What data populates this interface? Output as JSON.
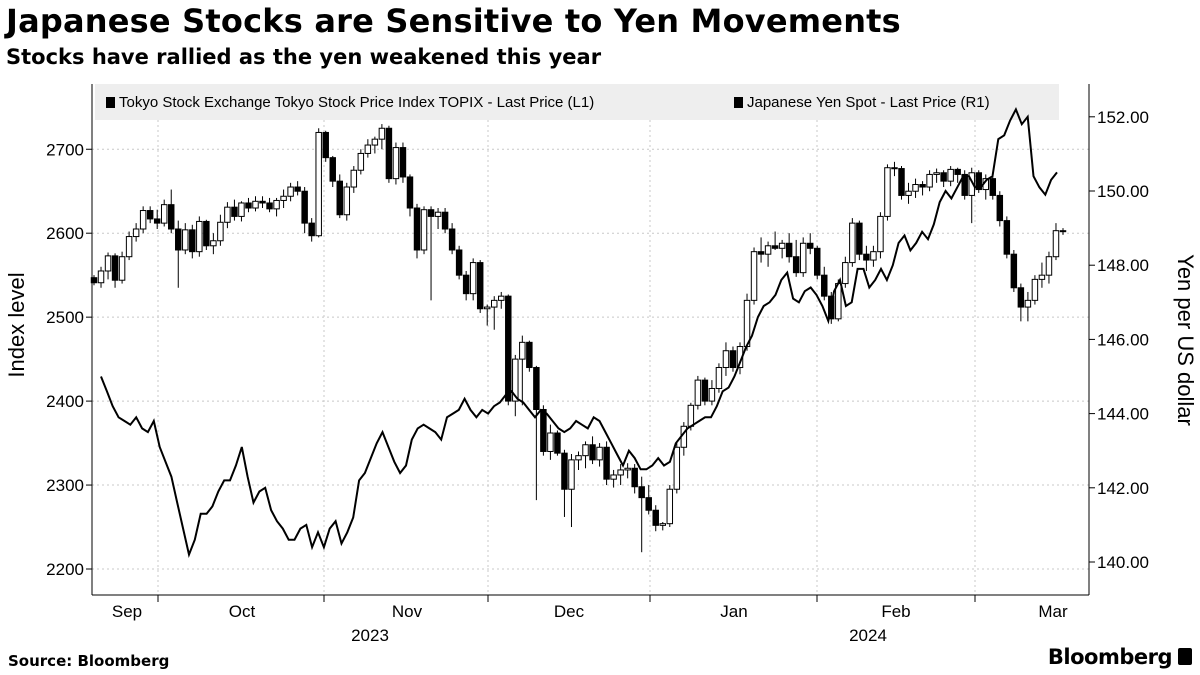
{
  "header": {
    "title": "Japanese Stocks are Sensitive to Yen Movements",
    "subtitle": "Stocks have rallied as the yen weakened this year"
  },
  "footer": {
    "source": "Source: Bloomberg",
    "brand": "Bloomberg"
  },
  "colors": {
    "grid": "#c8c8c8",
    "legend_bg": "#eeeeee",
    "series": "#000000",
    "up_candle": "#ffffff"
  },
  "chart_data": {
    "type": "line",
    "subtype": "candlestick-with-line-overlay",
    "xlabel": "",
    "x_axis": {
      "month_labels": [
        "Sep",
        "Oct",
        "Nov",
        "Dec",
        "Jan",
        "Feb",
        "Mar"
      ],
      "year_labels": [
        "2023",
        "2024"
      ]
    },
    "y_left": {
      "label": "Index level",
      "ticks": [
        2200,
        2300,
        2400,
        2500,
        2600,
        2700
      ],
      "range": [
        2185,
        2785
      ]
    },
    "y_right": {
      "label": "Yen per US dollar",
      "ticks": [
        "140.00",
        "142.00",
        "144.00",
        "146.00",
        "148.00",
        "150.00",
        "152.00"
      ],
      "range": [
        139.2,
        152.85
      ]
    },
    "legend": {
      "placement": "top",
      "items": [
        "Tokyo Stock Exchange Tokyo Stock Price Index TOPIX - Last Price (L1)",
        "Japanese Yen Spot - Last Price (R1)"
      ]
    },
    "grid": true,
    "series": [
      {
        "name": "Tokyo Stock Exchange Tokyo Stock Price Index TOPIX - Last Price (L1)",
        "type": "candlestick",
        "axis": "left",
        "values": [
          [
            2547,
            2550,
            2538,
            2541
          ],
          [
            2541,
            2560,
            2535,
            2555
          ],
          [
            2555,
            2577,
            2545,
            2573
          ],
          [
            2573,
            2576,
            2535,
            2544
          ],
          [
            2544,
            2578,
            2540,
            2572
          ],
          [
            2572,
            2602,
            2568,
            2596
          ],
          [
            2596,
            2612,
            2590,
            2605
          ],
          [
            2605,
            2632,
            2600,
            2627
          ],
          [
            2627,
            2632,
            2612,
            2617
          ],
          [
            2617,
            2628,
            2605,
            2612
          ],
          [
            2612,
            2640,
            2608,
            2634
          ],
          [
            2634,
            2652,
            2600,
            2605
          ],
          [
            2605,
            2615,
            2535,
            2580
          ],
          [
            2580,
            2612,
            2575,
            2604
          ],
          [
            2604,
            2610,
            2570,
            2578
          ],
          [
            2578,
            2620,
            2572,
            2614
          ],
          [
            2614,
            2616,
            2580,
            2585
          ],
          [
            2585,
            2600,
            2575,
            2591
          ],
          [
            2591,
            2622,
            2585,
            2613
          ],
          [
            2613,
            2637,
            2606,
            2631
          ],
          [
            2631,
            2640,
            2615,
            2620
          ],
          [
            2620,
            2638,
            2614,
            2636
          ],
          [
            2636,
            2642,
            2625,
            2630
          ],
          [
            2630,
            2644,
            2626,
            2638
          ],
          [
            2638,
            2644,
            2630,
            2636
          ],
          [
            2636,
            2642,
            2625,
            2629
          ],
          [
            2629,
            2642,
            2620,
            2639
          ],
          [
            2639,
            2652,
            2630,
            2644
          ],
          [
            2644,
            2660,
            2638,
            2655
          ],
          [
            2655,
            2662,
            2645,
            2650
          ],
          [
            2650,
            2655,
            2600,
            2612
          ],
          [
            2612,
            2618,
            2590,
            2597
          ],
          [
            2597,
            2725,
            2595,
            2720
          ],
          [
            2720,
            2722,
            2685,
            2690
          ],
          [
            2690,
            2692,
            2655,
            2662
          ],
          [
            2662,
            2670,
            2618,
            2622
          ],
          [
            2622,
            2660,
            2615,
            2655
          ],
          [
            2655,
            2680,
            2648,
            2675
          ],
          [
            2675,
            2700,
            2670,
            2695
          ],
          [
            2695,
            2712,
            2690,
            2705
          ],
          [
            2705,
            2715,
            2695,
            2712
          ],
          [
            2712,
            2730,
            2700,
            2725
          ],
          [
            2725,
            2728,
            2660,
            2665
          ],
          [
            2665,
            2708,
            2658,
            2702
          ],
          [
            2702,
            2708,
            2660,
            2667
          ],
          [
            2667,
            2670,
            2620,
            2630
          ],
          [
            2630,
            2635,
            2570,
            2580
          ],
          [
            2580,
            2632,
            2575,
            2628
          ],
          [
            2628,
            2632,
            2520,
            2620
          ],
          [
            2620,
            2630,
            2605,
            2625
          ],
          [
            2625,
            2630,
            2600,
            2605
          ],
          [
            2605,
            2612,
            2575,
            2580
          ],
          [
            2580,
            2585,
            2545,
            2550
          ],
          [
            2550,
            2555,
            2520,
            2528
          ],
          [
            2528,
            2570,
            2520,
            2565
          ],
          [
            2565,
            2568,
            2505,
            2510
          ],
          [
            2510,
            2515,
            2490,
            2512
          ],
          [
            2512,
            2525,
            2485,
            2520
          ],
          [
            2520,
            2530,
            2510,
            2525
          ],
          [
            2525,
            2527,
            2395,
            2400
          ],
          [
            2400,
            2455,
            2382,
            2450
          ],
          [
            2450,
            2478,
            2395,
            2470
          ],
          [
            2470,
            2472,
            2435,
            2440
          ],
          [
            2440,
            2442,
            2282,
            2390
          ],
          [
            2390,
            2395,
            2335,
            2340
          ],
          [
            2340,
            2372,
            2330,
            2362
          ],
          [
            2362,
            2365,
            2335,
            2338
          ],
          [
            2338,
            2342,
            2262,
            2295
          ],
          [
            2295,
            2337,
            2250,
            2330
          ],
          [
            2330,
            2340,
            2318,
            2335
          ],
          [
            2335,
            2352,
            2320,
            2348
          ],
          [
            2348,
            2358,
            2325,
            2330
          ],
          [
            2330,
            2350,
            2322,
            2345
          ],
          [
            2345,
            2352,
            2300,
            2307
          ],
          [
            2307,
            2318,
            2297,
            2312
          ],
          [
            2312,
            2325,
            2300,
            2318
          ],
          [
            2318,
            2326,
            2308,
            2320
          ],
          [
            2320,
            2325,
            2290,
            2298
          ],
          [
            2298,
            2310,
            2220,
            2285
          ],
          [
            2285,
            2300,
            2265,
            2270
          ],
          [
            2270,
            2276,
            2245,
            2252
          ],
          [
            2252,
            2256,
            2246,
            2254
          ],
          [
            2254,
            2300,
            2250,
            2295
          ],
          [
            2295,
            2350,
            2290,
            2345
          ],
          [
            2345,
            2375,
            2335,
            2370
          ],
          [
            2370,
            2398,
            2365,
            2395
          ],
          [
            2395,
            2430,
            2390,
            2425
          ],
          [
            2425,
            2428,
            2395,
            2400
          ],
          [
            2400,
            2425,
            2395,
            2415
          ],
          [
            2415,
            2445,
            2410,
            2440
          ],
          [
            2440,
            2470,
            2430,
            2460
          ],
          [
            2460,
            2465,
            2435,
            2440
          ],
          [
            2440,
            2470,
            2432,
            2465
          ],
          [
            2465,
            2528,
            2460,
            2520
          ],
          [
            2520,
            2583,
            2515,
            2578
          ],
          [
            2578,
            2595,
            2565,
            2575
          ],
          [
            2575,
            2590,
            2560,
            2585
          ],
          [
            2585,
            2602,
            2580,
            2582
          ],
          [
            2582,
            2592,
            2570,
            2588
          ],
          [
            2588,
            2600,
            2565,
            2572
          ],
          [
            2572,
            2592,
            2548,
            2553
          ],
          [
            2553,
            2595,
            2548,
            2588
          ],
          [
            2588,
            2600,
            2575,
            2582
          ],
          [
            2582,
            2585,
            2545,
            2550
          ],
          [
            2550,
            2560,
            2520,
            2525
          ],
          [
            2525,
            2530,
            2492,
            2498
          ],
          [
            2498,
            2545,
            2495,
            2540
          ],
          [
            2540,
            2572,
            2535,
            2565
          ],
          [
            2565,
            2618,
            2560,
            2612
          ],
          [
            2612,
            2615,
            2568,
            2575
          ],
          [
            2575,
            2585,
            2555,
            2568
          ],
          [
            2568,
            2585,
            2560,
            2578
          ],
          [
            2578,
            2625,
            2570,
            2620
          ],
          [
            2620,
            2682,
            2615,
            2678
          ],
          [
            2678,
            2685,
            2668,
            2677
          ],
          [
            2677,
            2680,
            2640,
            2645
          ],
          [
            2645,
            2660,
            2635,
            2650
          ],
          [
            2650,
            2665,
            2642,
            2658
          ],
          [
            2658,
            2662,
            2645,
            2655
          ],
          [
            2655,
            2675,
            2650,
            2670
          ],
          [
            2670,
            2677,
            2660,
            2672
          ],
          [
            2672,
            2675,
            2655,
            2662
          ],
          [
            2662,
            2680,
            2656,
            2676
          ],
          [
            2676,
            2678,
            2660,
            2670
          ],
          [
            2670,
            2675,
            2640,
            2645
          ],
          [
            2645,
            2678,
            2612,
            2672
          ],
          [
            2672,
            2675,
            2648,
            2652
          ],
          [
            2652,
            2670,
            2640,
            2665
          ],
          [
            2665,
            2669,
            2640,
            2645
          ],
          [
            2645,
            2650,
            2608,
            2615
          ],
          [
            2615,
            2620,
            2570,
            2575
          ],
          [
            2575,
            2580,
            2530,
            2535
          ],
          [
            2535,
            2540,
            2495,
            2512
          ],
          [
            2512,
            2530,
            2495,
            2520
          ],
          [
            2520,
            2550,
            2515,
            2545
          ],
          [
            2545,
            2565,
            2535,
            2550
          ],
          [
            2550,
            2578,
            2540,
            2572
          ],
          [
            2572,
            2612,
            2568,
            2603
          ],
          [
            2603,
            2606,
            2598,
            2602
          ]
        ]
      },
      {
        "name": "Japanese Yen Spot - Last Price (R1)",
        "type": "line",
        "axis": "right",
        "values": [
          145.0,
          144.6,
          144.2,
          143.9,
          143.8,
          143.7,
          143.9,
          143.6,
          143.5,
          143.8,
          143.1,
          142.7,
          142.3,
          141.6,
          140.9,
          140.2,
          140.6,
          141.3,
          141.3,
          141.5,
          141.9,
          142.2,
          142.2,
          142.6,
          143.1,
          142.3,
          141.6,
          141.9,
          142.0,
          141.4,
          141.1,
          140.9,
          140.6,
          140.6,
          140.9,
          141.0,
          140.4,
          140.8,
          140.4,
          140.9,
          141.1,
          140.5,
          140.8,
          141.2,
          142.2,
          142.4,
          142.8,
          143.2,
          143.5,
          143.1,
          142.7,
          142.4,
          142.6,
          143.3,
          143.6,
          143.7,
          143.6,
          143.5,
          143.3,
          143.9,
          144.0,
          144.1,
          144.4,
          144.1,
          143.9,
          144.1,
          144.0,
          144.2,
          144.3,
          144.5,
          144.6,
          144.4,
          144.3,
          144.1,
          143.9,
          144.1,
          144.0,
          143.8,
          143.6,
          143.5,
          143.6,
          143.8,
          143.7,
          143.6,
          143.9,
          143.8,
          143.5,
          143.2,
          142.9,
          142.6,
          143.0,
          142.8,
          142.5,
          142.5,
          142.6,
          142.8,
          142.6,
          142.7,
          143.2,
          143.4,
          143.6,
          143.7,
          143.8,
          143.9,
          143.9,
          144.2,
          144.6,
          144.7,
          145.0,
          145.4,
          145.8,
          146.1,
          146.6,
          146.9,
          147.0,
          147.2,
          147.6,
          147.8,
          147.1,
          147.0,
          147.3,
          147.4,
          147.2,
          146.9,
          146.5,
          147.3,
          147.6,
          146.9,
          147.0,
          147.9,
          147.9,
          147.4,
          147.6,
          147.9,
          147.6,
          148.0,
          148.6,
          148.8,
          148.4,
          148.6,
          148.9,
          148.7,
          149.1,
          149.7,
          150.0,
          149.8,
          150.1,
          150.4,
          150.4,
          150.1,
          150.1,
          150.3,
          150.4,
          151.4,
          151.5,
          151.9,
          152.2,
          151.8,
          152.0,
          150.4,
          150.1,
          149.9,
          150.3,
          150.5
        ]
      }
    ]
  }
}
